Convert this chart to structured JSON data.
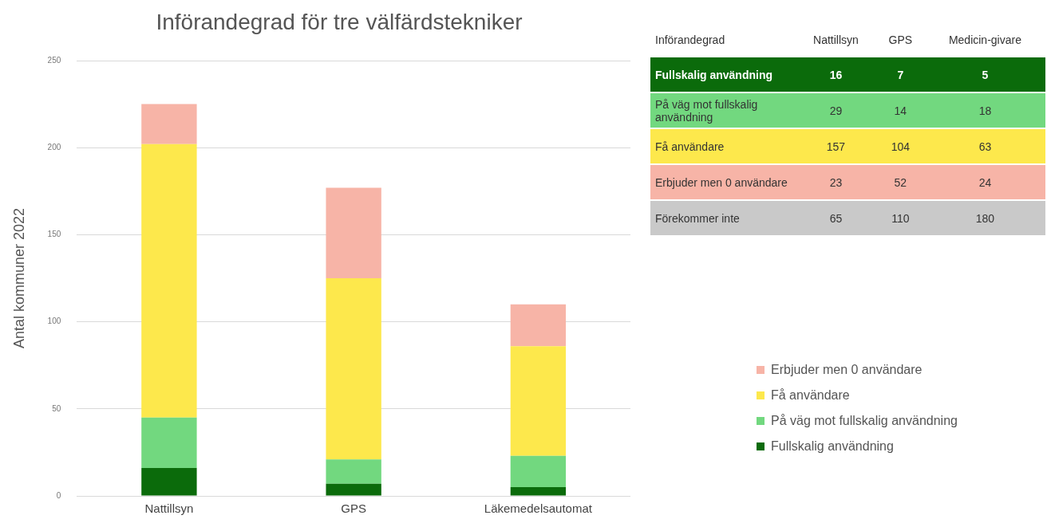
{
  "chart_data": [
    {
      "type": "bar",
      "title": "Införandegrad för tre välfärdstekniker",
      "ylabel": "Antal kommuner 2022",
      "categories": [
        "Nattillsyn",
        "GPS",
        "Läkemedelsautomat"
      ],
      "stacked": true,
      "series": [
        {
          "name": "Fullskalig användning",
          "color": "#0b6b0b",
          "values": [
            16,
            7,
            5
          ]
        },
        {
          "name": "På väg mot fullskalig användning",
          "color": "#72d87f",
          "values": [
            29,
            14,
            18
          ]
        },
        {
          "name": "Få användare",
          "color": "#fde84c",
          "values": [
            157,
            104,
            63
          ]
        },
        {
          "name": "Erbjuder men 0 användare",
          "color": "#f7b4a7",
          "values": [
            23,
            52,
            24
          ]
        }
      ],
      "ylim": [
        0,
        250
      ],
      "yticks": [
        0,
        50,
        100,
        150,
        200,
        250
      ],
      "grid": "y",
      "legend": "right"
    },
    {
      "type": "heatmap",
      "title": "Införandegrad",
      "categories": [
        "Nattillsyn",
        "GPS",
        "Medicin-givare"
      ],
      "y_categories": [
        "Fullskalig användning",
        "På väg mot fullskalig användning",
        "Få användare",
        "Erbjuder men 0 användare",
        "Förekommer inte"
      ],
      "cells": [
        [
          16,
          7,
          5
        ],
        [
          29,
          14,
          18
        ],
        [
          157,
          104,
          63
        ],
        [
          23,
          52,
          24
        ],
        [
          65,
          110,
          180
        ]
      ],
      "data_labels": true
    }
  ]
}
